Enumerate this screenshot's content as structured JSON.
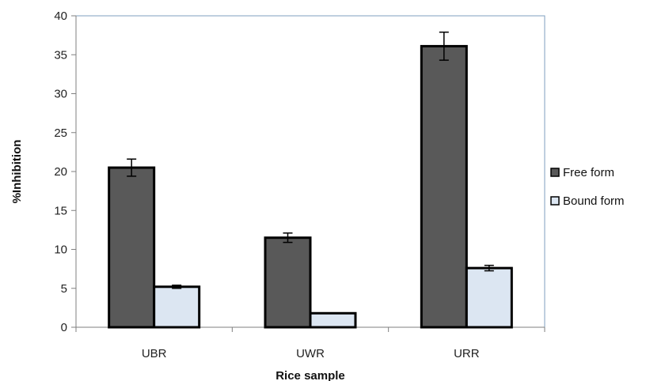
{
  "chart_data": {
    "type": "bar",
    "categories": [
      "UBR",
      "UWR",
      "URR"
    ],
    "series": [
      {
        "name": "Free form",
        "values": [
          20.5,
          11.5,
          36.1
        ],
        "errors": [
          1.1,
          0.6,
          1.8
        ],
        "color": "#595959"
      },
      {
        "name": "Bound form",
        "values": [
          5.2,
          1.8,
          7.6
        ],
        "errors": [
          0.2,
          0.0,
          0.35
        ],
        "color": "#dce6f2"
      }
    ],
    "title": "",
    "xlabel": "Rice sample",
    "ylabel": "%Inhibition",
    "ylim": [
      0,
      40
    ],
    "yticks": [
      0,
      5,
      10,
      15,
      20,
      25,
      30,
      35,
      40
    ],
    "ytick_labels": [
      "0",
      "5",
      "10",
      "15",
      "20",
      "25",
      "30",
      "35",
      "40"
    ],
    "grid": false,
    "legend_position": "right",
    "frame_color": "#7f9fbf"
  }
}
